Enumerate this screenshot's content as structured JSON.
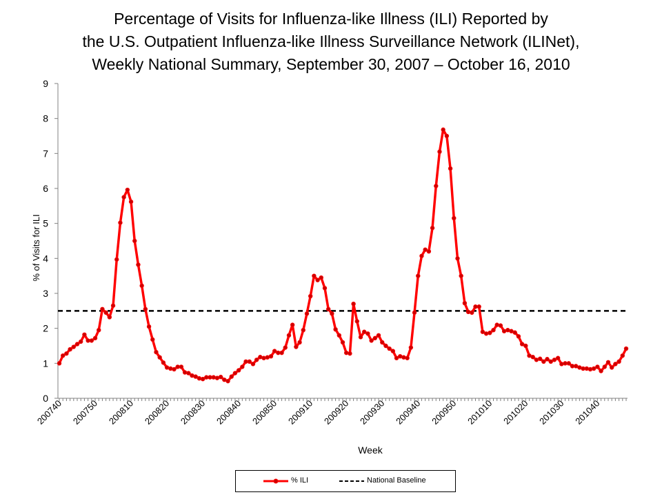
{
  "chart_data": {
    "type": "line",
    "title": "Percentage of Visits for Influenza-like Illness (ILI) Reported by the U.S. Outpatient Influenza-like Illness Surveillance Network (ILINet), Weekly National Summary, September 30, 2007 – October 16, 2010",
    "title_lines": [
      "Percentage of Visits for Influenza-like Illness (ILI) Reported by",
      "the U.S. Outpatient Influenza-like Illness Surveillance Network (ILINet),",
      "Weekly National Summary, September 30, 2007 – October 16, 2010"
    ],
    "xlabel": "Week",
    "ylabel": "% of Visits for ILI",
    "ylim": [
      0,
      9
    ],
    "yticks": [
      0,
      1,
      2,
      3,
      4,
      5,
      6,
      7,
      8,
      9
    ],
    "xtick_labels": [
      "200740",
      "200750",
      "200810",
      "200820",
      "200830",
      "200840",
      "200850",
      "200910",
      "200920",
      "200930",
      "200940",
      "200950",
      "201010",
      "201020",
      "201030",
      "201040"
    ],
    "grid": false,
    "legend_position": "bottom-center",
    "series": [
      {
        "name": "% ILI",
        "color": "#ff0000",
        "marker_color": "#cc0000",
        "values": [
          1.0,
          1.22,
          1.28,
          1.4,
          1.47,
          1.55,
          1.62,
          1.82,
          1.65,
          1.65,
          1.72,
          1.95,
          2.55,
          2.45,
          2.32,
          2.65,
          3.97,
          5.02,
          5.75,
          5.96,
          5.62,
          4.5,
          3.82,
          3.22,
          2.55,
          2.05,
          1.68,
          1.32,
          1.17,
          1.02,
          0.88,
          0.85,
          0.83,
          0.9,
          0.9,
          0.74,
          0.72,
          0.65,
          0.62,
          0.57,
          0.55,
          0.6,
          0.6,
          0.6,
          0.58,
          0.61,
          0.53,
          0.49,
          0.62,
          0.72,
          0.8,
          0.9,
          1.05,
          1.05,
          0.98,
          1.1,
          1.18,
          1.15,
          1.17,
          1.2,
          1.35,
          1.3,
          1.3,
          1.45,
          1.8,
          2.1,
          1.47,
          1.6,
          1.95,
          2.42,
          2.92,
          3.5,
          3.38,
          3.45,
          3.15,
          2.55,
          2.42,
          1.97,
          1.8,
          1.6,
          1.3,
          1.28,
          2.7,
          2.2,
          1.75,
          1.9,
          1.85,
          1.65,
          1.72,
          1.8,
          1.6,
          1.5,
          1.42,
          1.35,
          1.15,
          1.2,
          1.17,
          1.15,
          1.45,
          2.45,
          3.5,
          4.07,
          4.25,
          4.2,
          4.87,
          6.07,
          7.05,
          7.68,
          7.5,
          6.57,
          5.15,
          4.0,
          3.5,
          2.72,
          2.47,
          2.45,
          2.62,
          2.62,
          1.9,
          1.85,
          1.87,
          1.95,
          2.1,
          2.08,
          1.92,
          1.95,
          1.92,
          1.88,
          1.77,
          1.55,
          1.5,
          1.22,
          1.18,
          1.1,
          1.13,
          1.05,
          1.12,
          1.05,
          1.1,
          1.15,
          0.98,
          1.0,
          1.0,
          0.92,
          0.92,
          0.88,
          0.85,
          0.85,
          0.83,
          0.85,
          0.9,
          0.78,
          0.9,
          1.03,
          0.88,
          0.98,
          1.05,
          1.22,
          1.42
        ]
      },
      {
        "name": "National Baseline",
        "color": "#000000",
        "dashed": true,
        "value": 2.5
      }
    ]
  }
}
